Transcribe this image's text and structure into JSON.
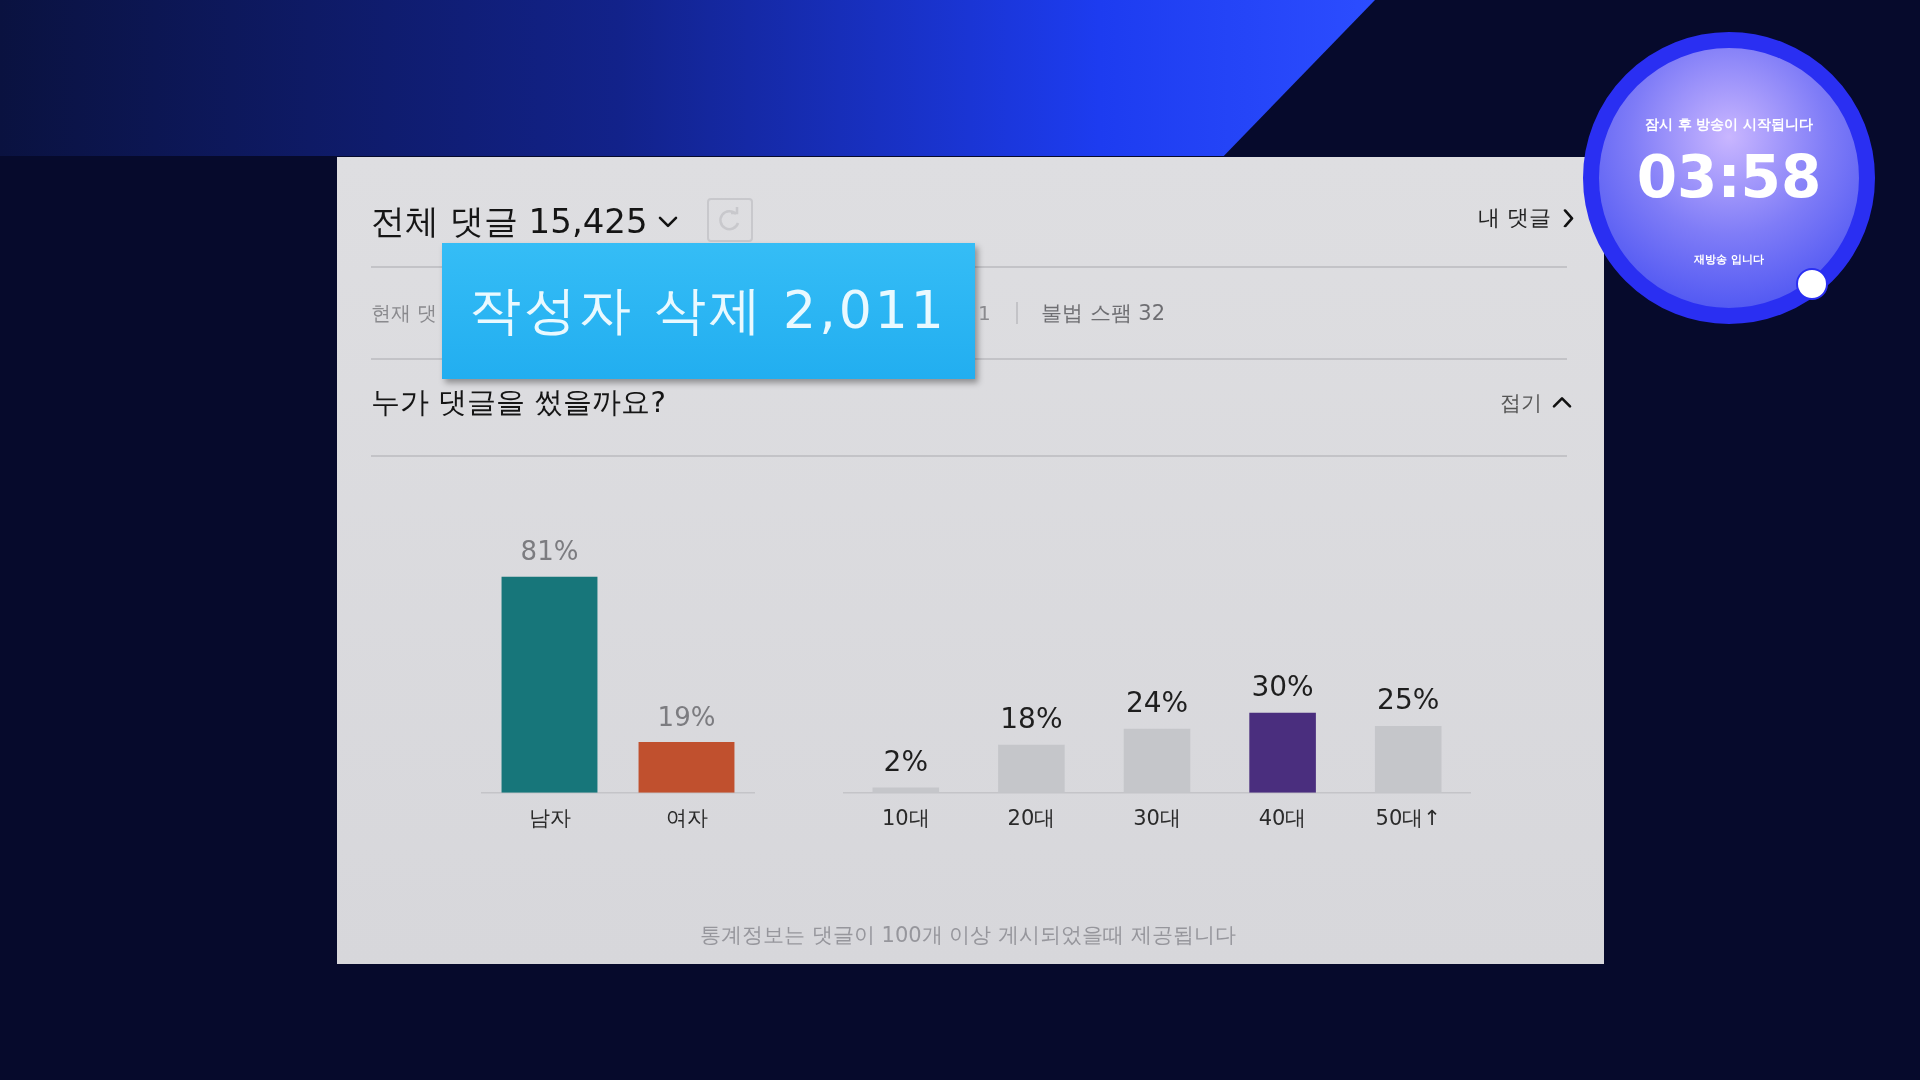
{
  "chart_data": [
    {
      "type": "bar",
      "title": "누가 댓글을 썼을까요?",
      "categories": [
        "남자",
        "여자"
      ],
      "values": [
        81,
        19
      ],
      "colors": [
        "#17767a",
        "#c0502e"
      ],
      "value_labels": [
        "81%",
        "19%"
      ],
      "tick_labels": "x",
      "annotations": [
        "전체 댓글 15,425",
        "내 댓글",
        "현재 댓",
        "1",
        "불법 스팸 32",
        "작성자 삭제 2,011",
        "접기",
        "통계정보는 댓글이 100개 이상 게시되었을때 제공됩니다",
        "잠시 후 방송이 시작됩니다",
        "03:58",
        "재방송 입니다"
      ]
    },
    {
      "type": "bar",
      "categories": [
        "10대",
        "20대",
        "30대",
        "40대",
        "50대↑"
      ],
      "values": [
        2,
        18,
        24,
        30,
        25
      ],
      "colors": [
        "#c5c6ca",
        "#c5c6ca",
        "#c5c6ca",
        "#4a2e7e",
        "#c5c6ca"
      ],
      "value_labels": [
        "2%",
        "18%",
        "24%",
        "30%",
        "25%"
      ],
      "tick_labels": "x"
    }
  ]
}
